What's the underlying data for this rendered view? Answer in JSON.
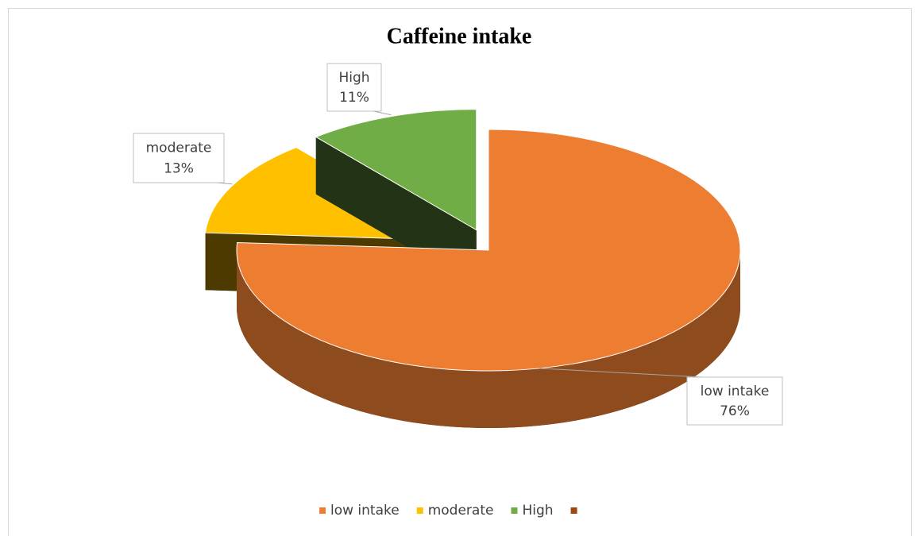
{
  "chart_data": {
    "type": "pie",
    "title": "Caffeine intake",
    "categories": [
      "low intake",
      "moderate",
      "High",
      null
    ],
    "values": [
      76,
      13,
      11,
      0
    ],
    "value_labels": [
      "76%",
      "13%",
      "11%",
      null
    ],
    "colors": [
      "#ed7d31",
      "#ffc000",
      "#70ad47",
      "#9e480e"
    ],
    "exploded": [
      false,
      true,
      true,
      false
    ],
    "legend": "bottom"
  }
}
